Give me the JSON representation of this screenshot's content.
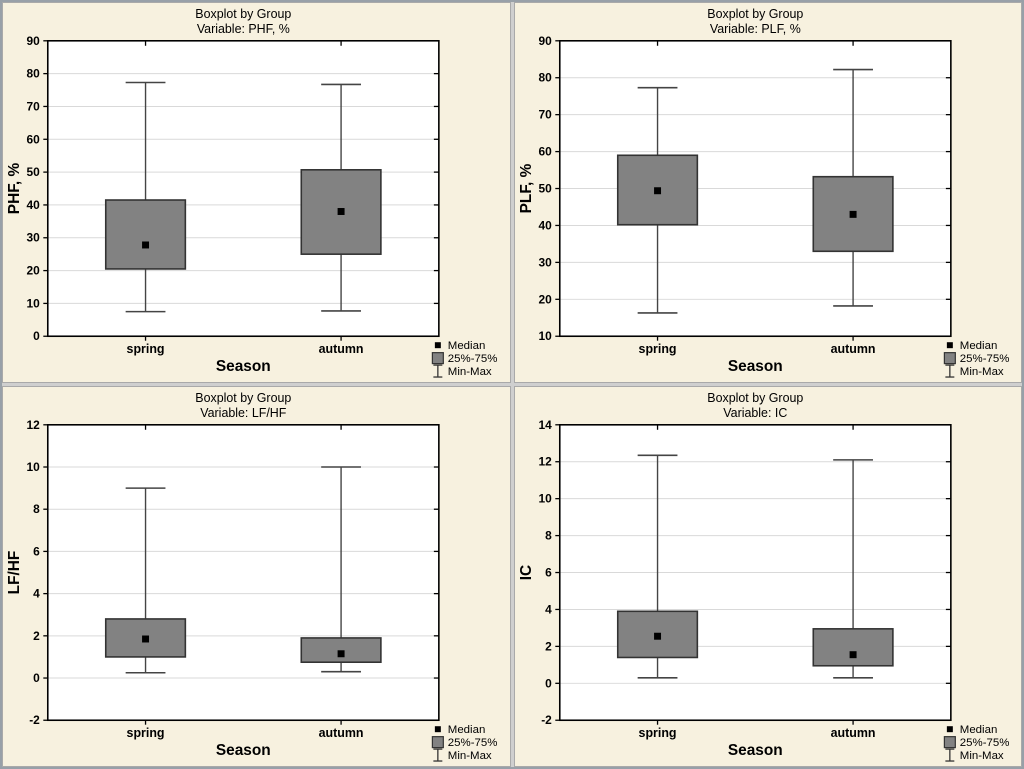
{
  "window": {
    "kind": "boxplot-figure-grid",
    "background_color": "#f7f1df",
    "frame_color": "#98a0a8"
  },
  "colors": {
    "plot_bg": "#ffffff",
    "plot_border": "#000000",
    "grid_line": "#d9d9d9",
    "box_fill": "#828282",
    "box_border": "#333333",
    "whisker": "#444444",
    "median": "#000000",
    "text": "#000000"
  },
  "legend": {
    "items": [
      {
        "glyph": "median-square-icon",
        "label": "Median"
      },
      {
        "glyph": "iqr-box-icon",
        "label": "25%-75%"
      },
      {
        "glyph": "minmax-whisker-icon",
        "label": "Min-Max"
      }
    ]
  },
  "chart_data": [
    {
      "type": "boxplot",
      "title": "Boxplot by Group",
      "subtitle": "Variable: PHF, %",
      "xlabel": "Season",
      "ylabel": "PHF, %",
      "ylim": [
        0,
        90
      ],
      "ytick_step": 10,
      "grid": true,
      "legend_position": "bottom-right",
      "categories": [
        "spring",
        "autumn"
      ],
      "stats": [
        {
          "min": 7.5,
          "q1": 20.5,
          "median": 27.8,
          "q3": 41.5,
          "max": 77.3
        },
        {
          "min": 7.7,
          "q1": 25.0,
          "median": 38.0,
          "q3": 50.7,
          "max": 76.7
        }
      ]
    },
    {
      "type": "boxplot",
      "title": "Boxplot by Group",
      "subtitle": "Variable: PLF, %",
      "xlabel": "Season",
      "ylabel": "PLF, %",
      "ylim": [
        10,
        90
      ],
      "ytick_step": 10,
      "grid": true,
      "legend_position": "bottom-right",
      "categories": [
        "spring",
        "autumn"
      ],
      "stats": [
        {
          "min": 16.3,
          "q1": 40.2,
          "median": 49.4,
          "q3": 59.0,
          "max": 77.3
        },
        {
          "min": 18.2,
          "q1": 33.0,
          "median": 43.0,
          "q3": 53.2,
          "max": 82.2
        }
      ]
    },
    {
      "type": "boxplot",
      "title": "Boxplot by Group",
      "subtitle": "Variable: LF/HF",
      "xlabel": "Season",
      "ylabel": "LF/HF",
      "ylim": [
        -2,
        12
      ],
      "ytick_step": 2,
      "grid": true,
      "legend_position": "bottom-right",
      "categories": [
        "spring",
        "autumn"
      ],
      "stats": [
        {
          "min": 0.25,
          "q1": 1.0,
          "median": 1.85,
          "q3": 2.8,
          "max": 9.0
        },
        {
          "min": 0.3,
          "q1": 0.75,
          "median": 1.15,
          "q3": 1.9,
          "max": 10.0
        }
      ]
    },
    {
      "type": "boxplot",
      "title": "Boxplot by Group",
      "subtitle": "Variable: IC",
      "xlabel": "Season",
      "ylabel": "IC",
      "ylim": [
        -2,
        14
      ],
      "ytick_step": 2,
      "grid": true,
      "legend_position": "bottom-right",
      "categories": [
        "spring",
        "autumn"
      ],
      "stats": [
        {
          "min": 0.3,
          "q1": 1.4,
          "median": 2.55,
          "q3": 3.9,
          "max": 12.35
        },
        {
          "min": 0.3,
          "q1": 0.95,
          "median": 1.55,
          "q3": 2.95,
          "max": 12.1
        }
      ]
    }
  ]
}
